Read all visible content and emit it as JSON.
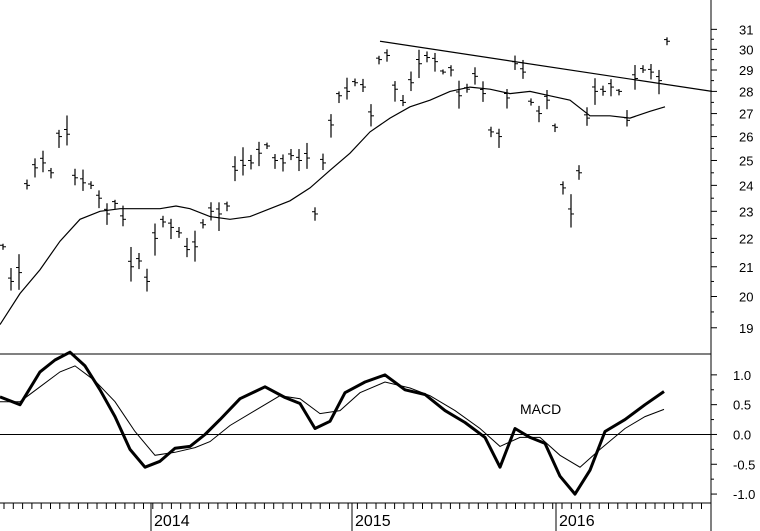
{
  "chart_data": [
    {
      "type": "ohlc",
      "panel": "price",
      "ylim": [
        18.2,
        32
      ],
      "yscale": "log",
      "y_ticks": [
        19,
        20,
        21,
        22,
        23,
        24,
        25,
        26,
        27,
        28,
        29,
        30,
        31
      ],
      "y_tick_labels": [
        "19",
        "20",
        "21",
        "22",
        "23",
        "24",
        "25",
        "26",
        "27",
        "28",
        "29",
        "30",
        "31"
      ],
      "x_labels": [
        "2014",
        "2015",
        "2016"
      ],
      "series": [
        {
          "kind": "weekly-bars",
          "points": [
            [
              0,
              21.7
            ],
            [
              8,
              20.5
            ],
            [
              16,
              20.8
            ],
            [
              24,
              24.0
            ],
            [
              32,
              24.7
            ],
            [
              40,
              24.9
            ],
            [
              48,
              24.5
            ],
            [
              56,
              26.0
            ],
            [
              64,
              26.1
            ],
            [
              72,
              24.3
            ],
            [
              80,
              24.1
            ],
            [
              88,
              24.0
            ],
            [
              96,
              23.5
            ],
            [
              104,
              22.9
            ],
            [
              112,
              23.3
            ],
            [
              120,
              22.7
            ],
            [
              128,
              21.0
            ],
            [
              136,
              21.2
            ],
            [
              144,
              20.5
            ],
            [
              152,
              22.0
            ],
            [
              160,
              22.6
            ],
            [
              168,
              22.4
            ],
            [
              176,
              22.2
            ],
            [
              184,
              21.6
            ],
            [
              192,
              21.7
            ],
            [
              200,
              22.5
            ],
            [
              208,
              23.0
            ],
            [
              216,
              22.9
            ],
            [
              224,
              23.2
            ],
            [
              232,
              24.6
            ],
            [
              240,
              24.8
            ],
            [
              248,
              24.9
            ],
            [
              256,
              25.3
            ],
            [
              264,
              25.6
            ],
            [
              272,
              25.0
            ],
            [
              280,
              24.9
            ],
            [
              288,
              25.2
            ],
            [
              296,
              25.0
            ],
            [
              304,
              25.1
            ],
            [
              312,
              22.9
            ],
            [
              320,
              24.9
            ],
            [
              328,
              26.5
            ],
            [
              336,
              27.8
            ],
            [
              344,
              28.0
            ],
            [
              352,
              28.4
            ],
            [
              360,
              28.2
            ],
            [
              368,
              26.9
            ],
            [
              376,
              29.5
            ],
            [
              384,
              29.7
            ],
            [
              392,
              28.1
            ],
            [
              400,
              27.5
            ],
            [
              408,
              28.4
            ],
            [
              416,
              29.3
            ],
            [
              424,
              29.6
            ],
            [
              432,
              29.4
            ],
            [
              440,
              28.9
            ],
            [
              448,
              29.0
            ],
            [
              456,
              27.8
            ],
            [
              464,
              28.1
            ],
            [
              472,
              28.7
            ],
            [
              480,
              27.9
            ],
            [
              488,
              26.2
            ],
            [
              496,
              26.0
            ],
            [
              504,
              27.7
            ],
            [
              512,
              29.3
            ],
            [
              520,
              28.9
            ],
            [
              528,
              27.5
            ],
            [
              536,
              27.0
            ],
            [
              544,
              27.6
            ],
            [
              552,
              26.4
            ],
            [
              560,
              23.9
            ],
            [
              568,
              22.9
            ],
            [
              576,
              24.5
            ],
            [
              584,
              26.8
            ],
            [
              592,
              28.0
            ],
            [
              600,
              28.0
            ],
            [
              608,
              28.2
            ],
            [
              616,
              28.0
            ],
            [
              624,
              26.7
            ],
            [
              632,
              28.6
            ],
            [
              640,
              29.0
            ],
            [
              648,
              28.9
            ],
            [
              656,
              28.5
            ],
            [
              664,
              30.4
            ]
          ]
        },
        {
          "kind": "moving-average",
          "points": [
            [
              0,
              19.1
            ],
            [
              20,
              20.1
            ],
            [
              40,
              20.9
            ],
            [
              60,
              21.9
            ],
            [
              80,
              22.7
            ],
            [
              100,
              23.0
            ],
            [
              120,
              23.1
            ],
            [
              140,
              23.1
            ],
            [
              160,
              23.1
            ],
            [
              176,
              23.2
            ],
            [
              190,
              23.1
            ],
            [
              210,
              22.8
            ],
            [
              230,
              22.7
            ],
            [
              250,
              22.8
            ],
            [
              270,
              23.1
            ],
            [
              290,
              23.4
            ],
            [
              310,
              23.9
            ],
            [
              330,
              24.6
            ],
            [
              350,
              25.3
            ],
            [
              370,
              26.2
            ],
            [
              390,
              26.8
            ],
            [
              410,
              27.3
            ],
            [
              430,
              27.6
            ],
            [
              450,
              28.0
            ],
            [
              470,
              28.2
            ],
            [
              490,
              28.1
            ],
            [
              510,
              27.9
            ],
            [
              530,
              28.0
            ],
            [
              550,
              27.8
            ],
            [
              570,
              27.6
            ],
            [
              590,
              26.9
            ],
            [
              610,
              26.9
            ],
            [
              630,
              26.8
            ],
            [
              650,
              27.1
            ],
            [
              665,
              27.3
            ]
          ]
        },
        {
          "kind": "trendline",
          "points": [
            [
              380,
              30.4
            ],
            [
              712,
              28.0
            ]
          ]
        }
      ]
    },
    {
      "type": "line",
      "panel": "indicator",
      "annotation": "MACD",
      "ylim": [
        -1.15,
        1.35
      ],
      "y_ticks": [
        1.0,
        0.5,
        0.0,
        -0.5,
        -1.0
      ],
      "y_tick_labels": [
        "1.0",
        "0.5",
        "0.0",
        "-0.5",
        "-1.0"
      ],
      "zero_line": 0.0,
      "series": [
        {
          "kind": "macd-line",
          "points": [
            [
              0,
              0.63
            ],
            [
              20,
              0.5
            ],
            [
              40,
              1.05
            ],
            [
              55,
              1.25
            ],
            [
              70,
              1.38
            ],
            [
              85,
              1.15
            ],
            [
              100,
              0.75
            ],
            [
              115,
              0.3
            ],
            [
              130,
              -0.25
            ],
            [
              145,
              -0.55
            ],
            [
              160,
              -0.45
            ],
            [
              175,
              -0.23
            ],
            [
              190,
              -0.2
            ],
            [
              205,
              0.0
            ],
            [
              220,
              0.25
            ],
            [
              240,
              0.6
            ],
            [
              265,
              0.8
            ],
            [
              285,
              0.62
            ],
            [
              300,
              0.52
            ],
            [
              315,
              0.1
            ],
            [
              330,
              0.22
            ],
            [
              345,
              0.7
            ],
            [
              365,
              0.88
            ],
            [
              385,
              1.0
            ],
            [
              405,
              0.75
            ],
            [
              425,
              0.67
            ],
            [
              445,
              0.4
            ],
            [
              465,
              0.2
            ],
            [
              485,
              -0.05
            ],
            [
              500,
              -0.55
            ],
            [
              515,
              0.1
            ],
            [
              530,
              -0.05
            ],
            [
              545,
              -0.15
            ],
            [
              560,
              -0.7
            ],
            [
              575,
              -1.0
            ],
            [
              590,
              -0.6
            ],
            [
              605,
              0.05
            ],
            [
              625,
              0.25
            ],
            [
              645,
              0.5
            ],
            [
              664,
              0.72
            ]
          ]
        },
        {
          "kind": "signal-line",
          "points": [
            [
              0,
              0.55
            ],
            [
              20,
              0.55
            ],
            [
              40,
              0.8
            ],
            [
              60,
              1.05
            ],
            [
              75,
              1.15
            ],
            [
              95,
              0.9
            ],
            [
              115,
              0.55
            ],
            [
              135,
              0.05
            ],
            [
              155,
              -0.35
            ],
            [
              175,
              -0.3
            ],
            [
              195,
              -0.22
            ],
            [
              210,
              -0.12
            ],
            [
              230,
              0.15
            ],
            [
              255,
              0.4
            ],
            [
              280,
              0.65
            ],
            [
              300,
              0.6
            ],
            [
              320,
              0.35
            ],
            [
              340,
              0.4
            ],
            [
              360,
              0.7
            ],
            [
              385,
              0.88
            ],
            [
              410,
              0.78
            ],
            [
              430,
              0.65
            ],
            [
              455,
              0.4
            ],
            [
              480,
              0.1
            ],
            [
              500,
              -0.2
            ],
            [
              520,
              -0.05
            ],
            [
              540,
              -0.05
            ],
            [
              560,
              -0.35
            ],
            [
              580,
              -0.55
            ],
            [
              600,
              -0.25
            ],
            [
              625,
              0.1
            ],
            [
              645,
              0.3
            ],
            [
              664,
              0.42
            ]
          ]
        }
      ]
    }
  ]
}
